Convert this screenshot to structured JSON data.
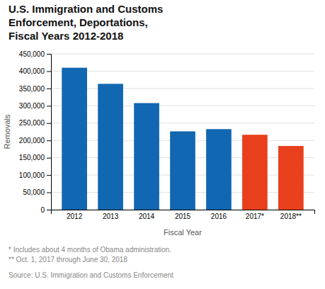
{
  "chart_data": {
    "type": "bar",
    "title": "U.S. Immigration and Customs\nEnforcement, Deportations,\nFiscal Years 2012-2018",
    "categories": [
      "2012",
      "2013",
      "2014",
      "2015",
      "2016",
      "2017*",
      "2018**"
    ],
    "values": [
      409849,
      363332,
      307791,
      226119,
      232566,
      216370,
      183929
    ],
    "colors": [
      "#1167b1",
      "#1167b1",
      "#1167b1",
      "#1167b1",
      "#1167b1",
      "#e8401c",
      "#e8401c"
    ],
    "xlabel": "Fiscal Year",
    "ylabel": "Removals",
    "ylim": [
      0,
      450000
    ],
    "yticks": [
      0,
      {
        "value": 50000,
        "label": "50,000"
      },
      {
        "value": 100000,
        "label": "100,000"
      },
      {
        "value": 150000,
        "label": "150,000"
      },
      {
        "value": 200000,
        "label": "200,000"
      },
      {
        "value": 250000,
        "label": "250,000"
      },
      {
        "value": 300000,
        "label": "300,000"
      },
      {
        "value": 350000,
        "label": "350,000"
      },
      {
        "value": 400000,
        "label": "400,000"
      },
      {
        "value": 450000,
        "label": "450,000"
      }
    ],
    "grid": true,
    "footnotes": [
      "* Includes about 4 months of Obama administration.",
      "** Oct. 1, 2017 through June 30, 2018"
    ],
    "source": "Source: U.S. Immigration and Customs Enforcement"
  }
}
